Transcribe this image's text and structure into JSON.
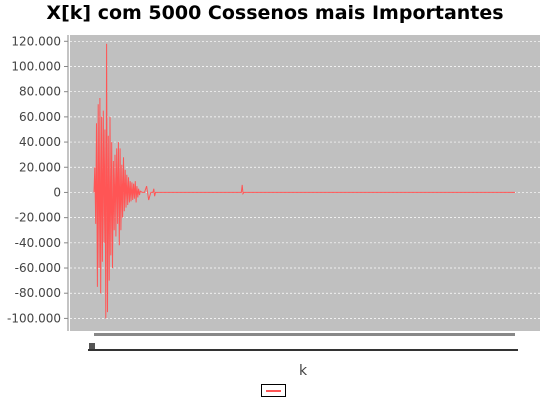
{
  "chart_data": {
    "type": "line",
    "title": "X[k] com 5000 Cossenos mais Importantes",
    "xlabel": "k",
    "ylabel": "",
    "ylim": [
      -110000,
      125000
    ],
    "yticks": [
      120000,
      100000,
      80000,
      60000,
      40000,
      20000,
      0,
      -20000,
      -40000,
      -60000,
      -80000,
      -100000
    ],
    "ytick_labels": [
      "120.000",
      "100.000",
      "80.000",
      "60.000",
      "40.000",
      "20.000",
      "0",
      "-20.000",
      "-40.000",
      "-60.000",
      "-80.000",
      "-100.000"
    ],
    "xlim": [
      0,
      100
    ],
    "grid": true,
    "legend": "bottom-center",
    "series": [
      {
        "color": "#ff5555",
        "x": [
          0.0,
          0.2,
          0.4,
          0.6,
          0.8,
          1.0,
          1.2,
          1.4,
          1.6,
          1.8,
          2.0,
          2.2,
          2.4,
          2.6,
          2.8,
          3.0,
          3.2,
          3.4,
          3.6,
          3.8,
          4.0,
          4.2,
          4.4,
          4.6,
          4.8,
          5.0,
          5.2,
          5.4,
          5.6,
          5.8,
          6.0,
          6.2,
          6.4,
          6.6,
          6.8,
          7.0,
          7.2,
          7.4,
          7.6,
          7.8,
          8.0,
          8.2,
          8.4,
          8.6,
          8.8,
          9.0,
          9.2,
          9.4,
          9.6,
          9.8,
          10.0,
          10.2,
          10.4,
          10.6,
          10.8,
          11.0,
          11.5,
          12.0,
          12.5,
          13.0,
          13.5,
          14.0,
          14.2,
          14.4,
          14.6,
          15.0,
          20.0,
          25.0,
          30.0,
          35.0,
          35.2,
          35.4,
          35.6,
          35.8,
          40.0,
          50.0,
          60.0,
          70.0,
          80.0,
          90.0,
          100.0
        ],
        "values": [
          0,
          20000,
          -25000,
          55000,
          -75000,
          70000,
          -60000,
          75000,
          -80000,
          60000,
          -55000,
          65000,
          -40000,
          50000,
          -100000,
          118000,
          -95000,
          45000,
          -70000,
          60000,
          -50000,
          40000,
          -60000,
          25000,
          -30000,
          30000,
          -35000,
          35000,
          -25000,
          40000,
          -42000,
          35000,
          -30000,
          22000,
          -20000,
          28000,
          -15000,
          18000,
          -12000,
          14000,
          -10000,
          12000,
          -8000,
          9000,
          -7000,
          8000,
          -6000,
          7000,
          -5000,
          9000,
          -8000,
          5000,
          -4000,
          3000,
          -2000,
          1000,
          0,
          0,
          5000,
          -6000,
          0,
          0,
          3000,
          -3000,
          0,
          0,
          0,
          0,
          0,
          0,
          6000,
          -1000,
          0,
          0,
          0,
          0,
          0,
          0,
          0,
          0,
          0
        ]
      }
    ]
  }
}
